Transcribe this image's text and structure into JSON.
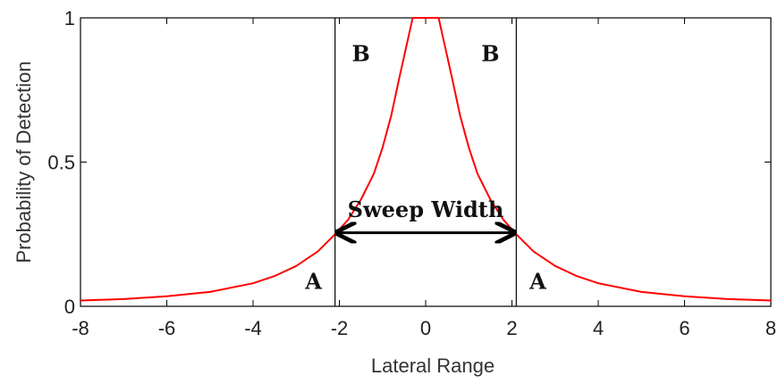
{
  "chart_data": {
    "type": "line",
    "title": "",
    "xlabel": "Lateral Range",
    "ylabel": "Probability of Detection",
    "xlim": [
      -8,
      8
    ],
    "ylim": [
      0,
      1
    ],
    "xticks": [
      -8,
      -6,
      -4,
      -2,
      0,
      2,
      4,
      6,
      8
    ],
    "yticks": [
      0,
      0.5,
      1
    ],
    "xtick_labels": [
      "-8",
      "-6",
      "-4",
      "-2",
      "0",
      "2",
      "4",
      "6",
      "8"
    ],
    "ytick_labels": [
      "0",
      "0.5",
      "1"
    ],
    "grid": false,
    "series": [
      {
        "color": "#ff0000",
        "x": [
          -8,
          -7,
          -6,
          -5,
          -4,
          -3.5,
          -3,
          -2.5,
          -2.1,
          -1.8,
          -1.5,
          -1.2,
          -1.0,
          -0.8,
          -0.6,
          -0.45,
          -0.3,
          0,
          0.3,
          0.45,
          0.6,
          0.8,
          1.0,
          1.2,
          1.5,
          1.8,
          2.1,
          2.5,
          3,
          3.5,
          4,
          5,
          6,
          7,
          8
        ],
        "y": [
          0.02,
          0.025,
          0.035,
          0.05,
          0.08,
          0.105,
          0.14,
          0.19,
          0.25,
          0.3,
          0.37,
          0.46,
          0.55,
          0.66,
          0.8,
          0.9,
          1.0,
          1.0,
          1.0,
          0.9,
          0.8,
          0.66,
          0.55,
          0.46,
          0.37,
          0.3,
          0.25,
          0.19,
          0.14,
          0.105,
          0.08,
          0.05,
          0.035,
          0.025,
          0.02
        ]
      }
    ],
    "vertical_lines": [
      -2.1,
      2.1
    ],
    "annotations": [
      {
        "text": "B",
        "x": -1.5,
        "y": 0.85
      },
      {
        "text": "B",
        "x": 1.5,
        "y": 0.85
      },
      {
        "text": "A",
        "x": -2.6,
        "y": 0.06
      },
      {
        "text": "A",
        "x": 2.6,
        "y": 0.06
      },
      {
        "text": "Sweep Width",
        "x": 0,
        "y": 0.31
      }
    ],
    "arrow": {
      "x1": -2.1,
      "x2": 2.1,
      "y": 0.255
    }
  }
}
